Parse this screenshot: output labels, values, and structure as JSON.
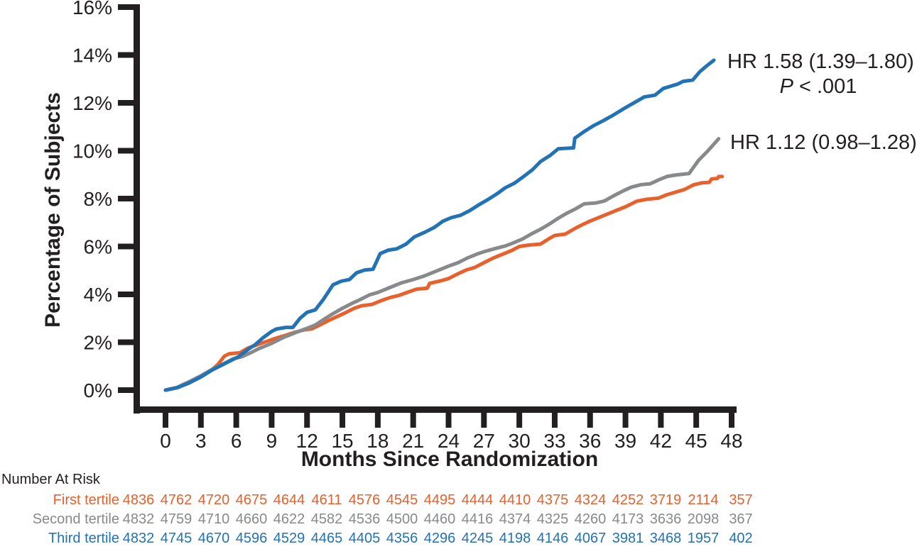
{
  "chart_data": {
    "type": "line",
    "xlabel": "Months Since Randomization",
    "ylabel": "Percentage of Subjects",
    "xlim": [
      0,
      48
    ],
    "ylim": [
      0,
      16
    ],
    "x_ticks": [
      0,
      3,
      6,
      9,
      12,
      15,
      18,
      21,
      24,
      27,
      30,
      33,
      36,
      39,
      42,
      45,
      48
    ],
    "y_ticks": [
      0,
      2,
      4,
      6,
      8,
      10,
      12,
      14,
      16
    ],
    "y_tick_labels": [
      "0%",
      "2%",
      "4%",
      "6%",
      "8%",
      "10%",
      "12%",
      "14%",
      "16%"
    ],
    "grid": false,
    "colors": {
      "axis": "#231F20"
    },
    "series": [
      {
        "name": "First tertile",
        "color": "#E8602C",
        "points": [
          [
            0,
            0
          ],
          [
            1,
            0.1
          ],
          [
            2,
            0.3
          ],
          [
            3,
            0.55
          ],
          [
            3.8,
            0.8
          ],
          [
            4.4,
            1.05
          ],
          [
            5,
            1.42
          ],
          [
            5.4,
            1.52
          ],
          [
            6.3,
            1.56
          ],
          [
            7,
            1.76
          ],
          [
            7.8,
            1.9
          ],
          [
            8.5,
            2.02
          ],
          [
            9.3,
            2.16
          ],
          [
            10,
            2.26
          ],
          [
            11,
            2.42
          ],
          [
            11.8,
            2.52
          ],
          [
            12.4,
            2.56
          ],
          [
            13,
            2.7
          ],
          [
            13.8,
            2.9
          ],
          [
            14.5,
            3.06
          ],
          [
            15.2,
            3.22
          ],
          [
            16,
            3.42
          ],
          [
            16.6,
            3.52
          ],
          [
            17.5,
            3.58
          ],
          [
            18.2,
            3.72
          ],
          [
            19,
            3.86
          ],
          [
            19.8,
            3.96
          ],
          [
            20.6,
            4.1
          ],
          [
            21.3,
            4.22
          ],
          [
            22.2,
            4.26
          ],
          [
            22.4,
            4.46
          ],
          [
            23.3,
            4.56
          ],
          [
            24,
            4.66
          ],
          [
            24.8,
            4.86
          ],
          [
            25.5,
            5.02
          ],
          [
            26.2,
            5.12
          ],
          [
            27,
            5.32
          ],
          [
            27.8,
            5.52
          ],
          [
            28.5,
            5.66
          ],
          [
            29.3,
            5.82
          ],
          [
            30,
            6.0
          ],
          [
            30.8,
            6.06
          ],
          [
            31.8,
            6.1
          ],
          [
            32.5,
            6.32
          ],
          [
            33,
            6.46
          ],
          [
            33.9,
            6.52
          ],
          [
            34.6,
            6.72
          ],
          [
            35.3,
            6.9
          ],
          [
            36,
            7.06
          ],
          [
            36.8,
            7.22
          ],
          [
            37.5,
            7.36
          ],
          [
            38.3,
            7.52
          ],
          [
            39,
            7.66
          ],
          [
            40,
            7.9
          ],
          [
            40.8,
            7.97
          ],
          [
            41.8,
            8.02
          ],
          [
            42.5,
            8.16
          ],
          [
            43.3,
            8.28
          ],
          [
            44,
            8.38
          ],
          [
            44.8,
            8.58
          ],
          [
            45.5,
            8.66
          ],
          [
            46.1,
            8.68
          ],
          [
            46.3,
            8.82
          ],
          [
            46.8,
            8.84
          ],
          [
            46.9,
            8.92
          ],
          [
            47.2,
            8.92
          ]
        ]
      },
      {
        "name": "Second tertile",
        "color": "#87898B",
        "points": [
          [
            0,
            0
          ],
          [
            1,
            0.12
          ],
          [
            2,
            0.35
          ],
          [
            3,
            0.6
          ],
          [
            4,
            0.88
          ],
          [
            5,
            1.12
          ],
          [
            5.7,
            1.3
          ],
          [
            6.5,
            1.4
          ],
          [
            7.3,
            1.58
          ],
          [
            8,
            1.75
          ],
          [
            9,
            1.95
          ],
          [
            10,
            2.2
          ],
          [
            11,
            2.4
          ],
          [
            12,
            2.58
          ],
          [
            12.7,
            2.72
          ],
          [
            13.5,
            2.98
          ],
          [
            14.3,
            3.22
          ],
          [
            15,
            3.42
          ],
          [
            15.8,
            3.62
          ],
          [
            16.5,
            3.78
          ],
          [
            17.3,
            3.98
          ],
          [
            18,
            4.08
          ],
          [
            19,
            4.28
          ],
          [
            20,
            4.48
          ],
          [
            21,
            4.62
          ],
          [
            22,
            4.78
          ],
          [
            23,
            4.98
          ],
          [
            24,
            5.18
          ],
          [
            24.8,
            5.32
          ],
          [
            25.6,
            5.52
          ],
          [
            26.4,
            5.68
          ],
          [
            27,
            5.78
          ],
          [
            28,
            5.92
          ],
          [
            28.8,
            6.02
          ],
          [
            29.5,
            6.15
          ],
          [
            30.3,
            6.32
          ],
          [
            31,
            6.52
          ],
          [
            31.8,
            6.72
          ],
          [
            32.5,
            6.92
          ],
          [
            33.3,
            7.18
          ],
          [
            34,
            7.38
          ],
          [
            34.8,
            7.58
          ],
          [
            35.5,
            7.78
          ],
          [
            36.5,
            7.82
          ],
          [
            37.2,
            7.9
          ],
          [
            38,
            8.12
          ],
          [
            38.8,
            8.32
          ],
          [
            39.5,
            8.48
          ],
          [
            40.3,
            8.58
          ],
          [
            41.1,
            8.62
          ],
          [
            41.8,
            8.78
          ],
          [
            42.5,
            8.92
          ],
          [
            43.2,
            8.98
          ],
          [
            44.4,
            9.05
          ],
          [
            45.2,
            9.6
          ],
          [
            46,
            10.0
          ],
          [
            46.9,
            10.5
          ]
        ]
      },
      {
        "name": "Third tertile",
        "color": "#2272B6",
        "points": [
          [
            0,
            0
          ],
          [
            1,
            0.1
          ],
          [
            2,
            0.3
          ],
          [
            3,
            0.55
          ],
          [
            4,
            0.85
          ],
          [
            5,
            1.1
          ],
          [
            5.6,
            1.25
          ],
          [
            6.2,
            1.4
          ],
          [
            7,
            1.7
          ],
          [
            7.6,
            1.9
          ],
          [
            8.3,
            2.2
          ],
          [
            9,
            2.45
          ],
          [
            9.4,
            2.55
          ],
          [
            10.2,
            2.62
          ],
          [
            10.8,
            2.62
          ],
          [
            11.4,
            3.0
          ],
          [
            12,
            3.25
          ],
          [
            12.7,
            3.35
          ],
          [
            13.4,
            3.8
          ],
          [
            14.2,
            4.4
          ],
          [
            14.9,
            4.55
          ],
          [
            15.6,
            4.62
          ],
          [
            16.2,
            4.9
          ],
          [
            16.9,
            5.02
          ],
          [
            17.6,
            5.05
          ],
          [
            18.2,
            5.7
          ],
          [
            18.9,
            5.85
          ],
          [
            19.6,
            5.9
          ],
          [
            20.4,
            6.1
          ],
          [
            21.1,
            6.4
          ],
          [
            22,
            6.6
          ],
          [
            22.8,
            6.8
          ],
          [
            23.5,
            7.05
          ],
          [
            24.2,
            7.2
          ],
          [
            25,
            7.3
          ],
          [
            25.8,
            7.5
          ],
          [
            26.6,
            7.75
          ],
          [
            27.3,
            7.95
          ],
          [
            28.1,
            8.2
          ],
          [
            28.8,
            8.45
          ],
          [
            29.6,
            8.65
          ],
          [
            30.3,
            8.9
          ],
          [
            31.1,
            9.2
          ],
          [
            31.8,
            9.55
          ],
          [
            32.6,
            9.8
          ],
          [
            33.3,
            10.08
          ],
          [
            34.6,
            10.12
          ],
          [
            34.7,
            10.52
          ],
          [
            35.5,
            10.8
          ],
          [
            36.3,
            11.05
          ],
          [
            37.1,
            11.25
          ],
          [
            38,
            11.5
          ],
          [
            39,
            11.8
          ],
          [
            40,
            12.08
          ],
          [
            40.6,
            12.25
          ],
          [
            41.5,
            12.32
          ],
          [
            42.2,
            12.6
          ],
          [
            43,
            12.72
          ],
          [
            43.4,
            12.78
          ],
          [
            43.9,
            12.9
          ],
          [
            44.7,
            12.95
          ],
          [
            45.3,
            13.3
          ],
          [
            45.9,
            13.55
          ],
          [
            46.5,
            13.78
          ]
        ]
      }
    ],
    "annotations": {
      "hr_top": {
        "text": "HR 1.58 (1.39–1.80)",
        "p_italic": "P",
        "p_rest": " < .001"
      },
      "hr_bottom": {
        "text": "HR 1.12 (0.98–1.28)"
      }
    },
    "legend_position": "none"
  },
  "risk_table": {
    "title": "Number At Risk",
    "rows": [
      {
        "label": "First tertile",
        "color": "#E8602C",
        "values": [
          4836,
          4762,
          4720,
          4675,
          4644,
          4611,
          4576,
          4545,
          4495,
          4444,
          4410,
          4375,
          4324,
          4252,
          3719,
          2114,
          357
        ]
      },
      {
        "label": "Second tertile",
        "color": "#87898B",
        "values": [
          4832,
          4759,
          4710,
          4660,
          4622,
          4582,
          4536,
          4500,
          4460,
          4416,
          4374,
          4325,
          4260,
          4173,
          3636,
          2098,
          367
        ]
      },
      {
        "label": "Third tertile",
        "color": "#2272B6",
        "values": [
          4832,
          4745,
          4670,
          4596,
          4529,
          4465,
          4405,
          4356,
          4296,
          4245,
          4198,
          4146,
          4067,
          3981,
          3468,
          1957,
          402
        ]
      }
    ]
  }
}
